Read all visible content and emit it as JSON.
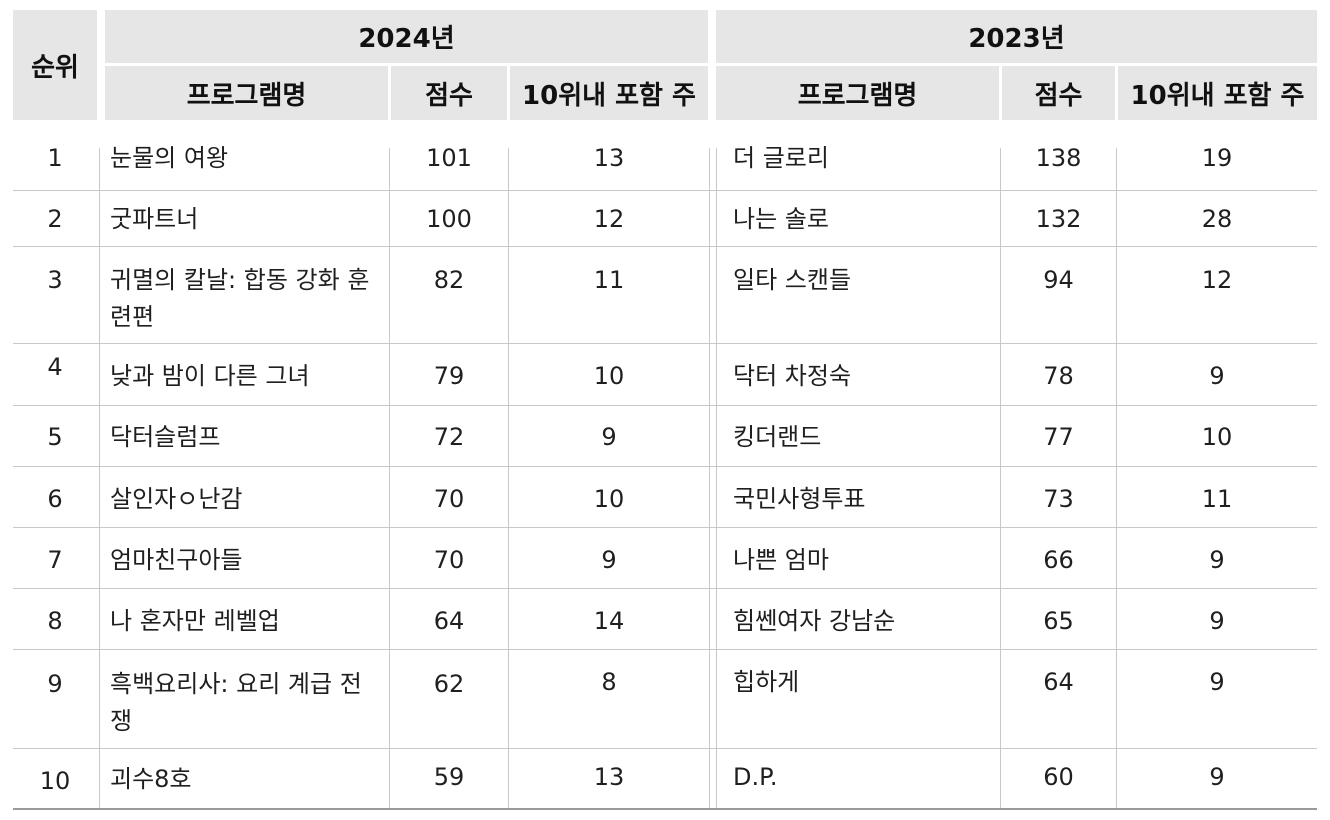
{
  "headers": {
    "rank": "순위",
    "year_2024": "2024년",
    "year_2023": "2023년",
    "program_name": "프로그램명",
    "score": "점수",
    "weeks_in_top10": "10위내 포함 주"
  },
  "rows": [
    {
      "rank": "1",
      "name_2024": "눈물의 여왕",
      "score_2024": "101",
      "weeks_2024": "13",
      "name_2023": "더 글로리",
      "score_2023": "138",
      "weeks_2023": "19"
    },
    {
      "rank": "2",
      "name_2024": "굿파트너",
      "score_2024": "100",
      "weeks_2024": "12",
      "name_2023": "나는 솔로",
      "score_2023": "132",
      "weeks_2023": "28"
    },
    {
      "rank": "3",
      "name_2024": "귀멸의 칼날: 합동 강화 훈련편",
      "score_2024": "82",
      "weeks_2024": "11",
      "name_2023": "일타 스캔들",
      "score_2023": "94",
      "weeks_2023": "12"
    },
    {
      "rank": "4",
      "name_2024": "낮과 밤이 다른 그녀",
      "score_2024": "79",
      "weeks_2024": "10",
      "name_2023": "닥터 차정숙",
      "score_2023": "78",
      "weeks_2023": "9"
    },
    {
      "rank": "5",
      "name_2024": "닥터슬럼프",
      "score_2024": "72",
      "weeks_2024": "9",
      "name_2023": "킹더랜드",
      "score_2023": "77",
      "weeks_2023": "10"
    },
    {
      "rank": "6",
      "name_2024": "살인자ㅇ난감",
      "score_2024": "70",
      "weeks_2024": "10",
      "name_2023": "국민사형투표",
      "score_2023": "73",
      "weeks_2023": "11"
    },
    {
      "rank": "7",
      "name_2024": "엄마친구아들",
      "score_2024": "70",
      "weeks_2024": "9",
      "name_2023": "나쁜 엄마",
      "score_2023": "66",
      "weeks_2023": "9"
    },
    {
      "rank": "8",
      "name_2024": "나 혼자만 레벨업",
      "score_2024": "64",
      "weeks_2024": "14",
      "name_2023": "힘쎈여자 강남순",
      "score_2023": "65",
      "weeks_2023": "9"
    },
    {
      "rank": "9",
      "name_2024": "흑백요리사: 요리 계급 전쟁",
      "score_2024": "62",
      "weeks_2024": "8",
      "name_2023": "힙하게",
      "score_2023": "64",
      "weeks_2023": "9"
    },
    {
      "rank": "10",
      "name_2024": "괴수8호",
      "score_2024": "59",
      "weeks_2024": "13",
      "name_2023": "D.P.",
      "score_2023": "60",
      "weeks_2023": "9"
    }
  ]
}
